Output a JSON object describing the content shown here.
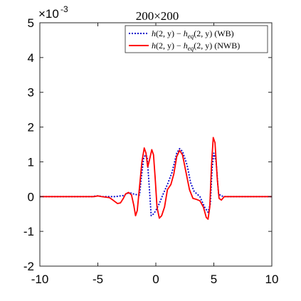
{
  "chart_data": {
    "type": "line",
    "title": "200×200",
    "xlabel": "",
    "ylabel": "",
    "y_exponent_label": "×10",
    "y_exponent_power": "-3",
    "xlim": [
      -10,
      10
    ],
    "ylim": [
      -2,
      5
    ],
    "x_ticks": [
      -10,
      -5,
      0,
      5,
      10
    ],
    "x_tick_labels": [
      "-10",
      "-5",
      "0",
      "5",
      "10"
    ],
    "y_ticks": [
      -2,
      -1,
      0,
      1,
      2,
      3,
      4,
      5
    ],
    "y_tick_labels": [
      "-2",
      "-1",
      "0",
      "1",
      "2",
      "3",
      "4",
      "5"
    ],
    "grid": false,
    "legend_position": "top-right",
    "series": [
      {
        "name": "h(2, y) − h_eq(2, y) (WB)",
        "color": "#0000cc",
        "style": "dotted",
        "points": [
          [
            -10,
            0
          ],
          [
            -5.4,
            0
          ],
          [
            -5.2,
            0.02
          ],
          [
            -4.9,
            0.02
          ],
          [
            -4.6,
            0.0
          ],
          [
            -3.5,
            0.0
          ],
          [
            -2.8,
            0.03
          ],
          [
            -2.4,
            0.1
          ],
          [
            -2.1,
            0.1
          ],
          [
            -1.8,
            0.06
          ],
          [
            -1.4,
            0.05
          ],
          [
            -1.25,
            0.55
          ],
          [
            -1.05,
            1.1
          ],
          [
            -0.9,
            1.2
          ],
          [
            -0.75,
            1.15
          ],
          [
            -0.55,
            0.2
          ],
          [
            -0.4,
            -0.55
          ],
          [
            -0.2,
            -0.5
          ],
          [
            0,
            -0.4
          ],
          [
            0.3,
            -0.2
          ],
          [
            0.6,
            0.05
          ],
          [
            1.0,
            0.35
          ],
          [
            1.4,
            0.7
          ],
          [
            1.8,
            1.25
          ],
          [
            2.05,
            1.38
          ],
          [
            2.3,
            1.3
          ],
          [
            2.7,
            0.9
          ],
          [
            3.0,
            0.4
          ],
          [
            3.3,
            0.15
          ],
          [
            3.8,
            0.0
          ],
          [
            4.2,
            -0.3
          ],
          [
            4.5,
            -0.45
          ],
          [
            4.7,
            -0.2
          ],
          [
            4.85,
            0.8
          ],
          [
            5.0,
            1.25
          ],
          [
            5.2,
            1.0
          ],
          [
            5.4,
            0.1
          ],
          [
            5.6,
            0.02
          ],
          [
            6.0,
            0
          ],
          [
            10,
            0
          ]
        ]
      },
      {
        "name": "h(2, y) − h_eq(2, y) (NWB)",
        "color": "#ff0000",
        "style": "solid",
        "points": [
          [
            -10,
            0
          ],
          [
            -5.3,
            0
          ],
          [
            -5.0,
            0.02
          ],
          [
            -4.7,
            0.0
          ],
          [
            -4.0,
            -0.03
          ],
          [
            -3.7,
            -0.1
          ],
          [
            -3.3,
            -0.2
          ],
          [
            -3.05,
            -0.18
          ],
          [
            -2.8,
            -0.05
          ],
          [
            -2.6,
            0.08
          ],
          [
            -2.35,
            0.12
          ],
          [
            -2.1,
            0.05
          ],
          [
            -1.9,
            -0.25
          ],
          [
            -1.75,
            -0.55
          ],
          [
            -1.6,
            -0.4
          ],
          [
            -1.4,
            0.3
          ],
          [
            -1.2,
            1.0
          ],
          [
            -1.0,
            1.4
          ],
          [
            -0.85,
            1.25
          ],
          [
            -0.7,
            0.85
          ],
          [
            -0.55,
            1.05
          ],
          [
            -0.35,
            1.35
          ],
          [
            -0.2,
            1.2
          ],
          [
            -0.05,
            0.5
          ],
          [
            0.1,
            -0.3
          ],
          [
            0.3,
            -0.62
          ],
          [
            0.5,
            -0.55
          ],
          [
            0.75,
            -0.3
          ],
          [
            1.0,
            0.2
          ],
          [
            1.3,
            0.35
          ],
          [
            1.55,
            0.65
          ],
          [
            1.8,
            1.15
          ],
          [
            2.05,
            1.33
          ],
          [
            2.3,
            1.2
          ],
          [
            2.6,
            0.7
          ],
          [
            2.9,
            0.2
          ],
          [
            3.2,
            -0.05
          ],
          [
            3.5,
            -0.08
          ],
          [
            3.8,
            -0.12
          ],
          [
            4.1,
            -0.3
          ],
          [
            4.35,
            -0.6
          ],
          [
            4.5,
            -0.65
          ],
          [
            4.65,
            -0.3
          ],
          [
            4.8,
            0.9
          ],
          [
            4.95,
            1.7
          ],
          [
            5.1,
            1.55
          ],
          [
            5.3,
            0.5
          ],
          [
            5.45,
            -0.05
          ],
          [
            5.65,
            -0.1
          ],
          [
            5.9,
            0.0
          ],
          [
            6.2,
            0
          ],
          [
            10,
            0
          ]
        ]
      }
    ]
  },
  "legend": {
    "wb": {
      "h": "h",
      "args": "(2, y) − ",
      "h2": "h",
      "sub": "eq",
      "args2": "(2, y)",
      "tag": " (WB)"
    },
    "nwb": {
      "h": "h",
      "args": "(2, y) − ",
      "h2": "h",
      "sub": "eq",
      "args2": "(2, y)",
      "tag": " (NWB)"
    }
  }
}
